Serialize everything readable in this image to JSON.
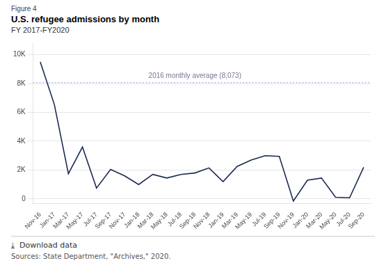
{
  "chart_data": {
    "type": "line",
    "figure_label": "Figure 4",
    "title": "U.S. refugee admissions by month",
    "subtitle": "FY 2017-FY2020",
    "categories": [
      "Nov-16",
      "Jan-17",
      "Mar-17",
      "May-17",
      "Jul-17",
      "Sep-17",
      "Nov-17",
      "Jan-18",
      "Mar-18",
      "May-18",
      "Jul-18",
      "Sep-18",
      "Nov-18",
      "Jan-19",
      "Mar-19",
      "May-19",
      "Jul-19",
      "Sep-19",
      "Nov-19",
      "Jan-20",
      "Mar-20",
      "May-20",
      "Jul-20",
      "Sep-20"
    ],
    "values": [
      9495,
      6550,
      1750,
      3600,
      750,
      2050,
      1600,
      1000,
      1700,
      1450,
      1700,
      1800,
      2150,
      1200,
      2250,
      2700,
      3000,
      2950,
      -150,
      1300,
      1450,
      120,
      80,
      2200
    ],
    "color": "#1c2951",
    "reference_line": {
      "value": 8073,
      "label": "2016 monthly average (8,073)",
      "color": "#9999cc",
      "label_color": "#777799",
      "line_style": "dotted"
    },
    "notes": [
      "⤓  Download data",
      "Sources: State Department, \"Archives,\" 2020."
    ],
    "ylim": [
      -300,
      10800
    ],
    "yticks": [
      0,
      {
        "value": 2000,
        "label": "2K"
      },
      {
        "value": 4000,
        "label": "4K"
      },
      {
        "value": 6000,
        "label": "6K"
      },
      {
        "value": 8000,
        "label": "8K"
      },
      {
        "value": 10000,
        "label": "10K"
      }
    ],
    "grid": true
  }
}
